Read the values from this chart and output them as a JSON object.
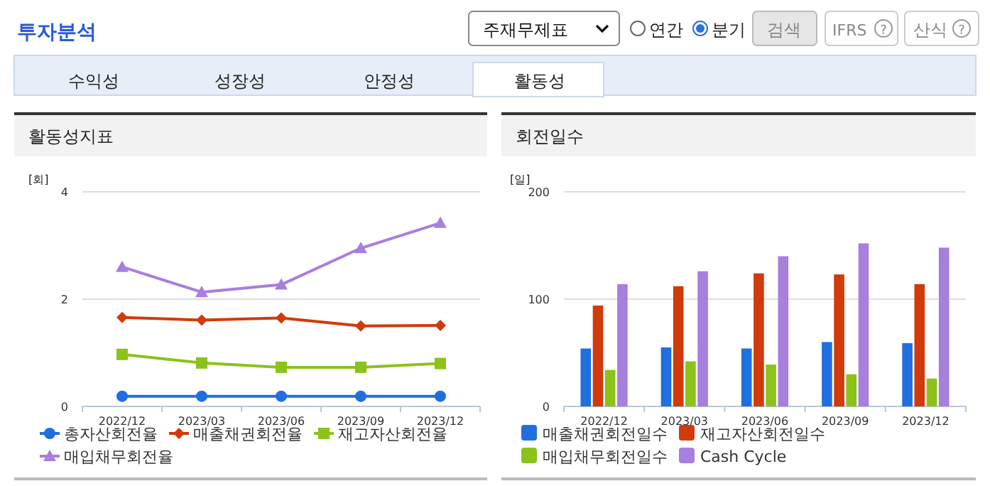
{
  "chart_data": [
    {
      "type": "other",
      "title": "투자분석",
      "annotations": [
        "주재무제표",
        "연간",
        "분기",
        "검색",
        "IFRS",
        "산식",
        "수익성",
        "성장성",
        "안정성",
        "활동성",
        "?",
        "?"
      ]
    },
    {
      "type": "line",
      "title": "활동성지표",
      "ylabel": "[회]",
      "categories": [
        "2022/12",
        "2023/03",
        "2023/06",
        "2023/09",
        "2023/12"
      ],
      "ylim": [
        0,
        4
      ],
      "yticks": [
        0,
        2,
        4
      ],
      "grid": "y",
      "legend": "bottom",
      "series": [
        {
          "name": "총자산회전율",
          "color": "#1f6fe0",
          "marker": "circle",
          "values": [
            0.19,
            0.19,
            0.19,
            0.19,
            0.19
          ]
        },
        {
          "name": "매출채권회전율",
          "color": "#d13a0a",
          "marker": "diamond",
          "values": [
            1.66,
            1.61,
            1.65,
            1.5,
            1.51
          ]
        },
        {
          "name": "재고자산회전율",
          "color": "#8cc21a",
          "marker": "square",
          "values": [
            0.97,
            0.81,
            0.73,
            0.73,
            0.8
          ]
        },
        {
          "name": "매입채무회전율",
          "color": "#a77fdd",
          "marker": "triangle",
          "values": [
            2.6,
            2.13,
            2.27,
            2.95,
            3.42
          ]
        }
      ]
    },
    {
      "type": "bar",
      "title": "회전일수",
      "ylabel": "[일]",
      "categories": [
        "2022/12",
        "2023/03",
        "2023/06",
        "2023/09",
        "2023/12"
      ],
      "ylim": [
        0,
        200
      ],
      "yticks": [
        0,
        100,
        200
      ],
      "grid": "y",
      "legend": "bottom",
      "series": [
        {
          "name": "매출채권회전일수",
          "color": "#1f6fe0",
          "values": [
            54,
            55,
            54,
            60,
            59
          ]
        },
        {
          "name": "재고자산회전일수",
          "color": "#d13a0a",
          "values": [
            94,
            112,
            124,
            123,
            114
          ]
        },
        {
          "name": "매입채무회전일수",
          "color": "#8cc21a",
          "values": [
            34,
            42,
            39,
            30,
            26
          ]
        },
        {
          "name": "Cash Cycle",
          "color": "#a77fdd",
          "values": [
            114,
            126,
            140,
            152,
            148
          ]
        }
      ]
    }
  ]
}
